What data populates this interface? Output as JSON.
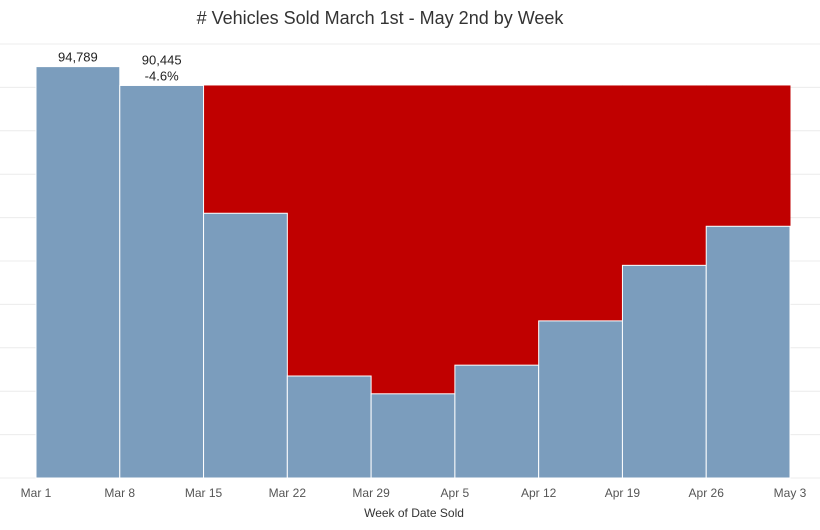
{
  "chart_data": {
    "type": "bar",
    "title": "# Vehicles Sold March 1st - May 2nd by Week",
    "xlabel": "Week of Date Sold",
    "ylabel": "",
    "categories": [
      "Mar 1",
      "Mar 8",
      "Mar 15",
      "Mar 22",
      "Mar 29",
      "Apr 5",
      "Apr 12",
      "Apr 19",
      "Apr 26"
    ],
    "axis_ticks": [
      "Mar 1",
      "Mar 8",
      "Mar 15",
      "Mar 22",
      "Mar 29",
      "Apr 5",
      "Apr 12",
      "Apr 19",
      "Apr 26",
      "May 3"
    ],
    "values": [
      94789,
      90445,
      61000,
      23500,
      19400,
      26000,
      36200,
      49000,
      58000
    ],
    "reference_value": 90445,
    "data_labels": [
      {
        "category": "Mar 1",
        "lines": [
          "94,789"
        ]
      },
      {
        "category": "Mar 8",
        "lines": [
          "90,445",
          "-4.6%"
        ]
      }
    ],
    "ylim": [
      0,
      100000
    ],
    "grid": true,
    "colors": {
      "bar": "#7b9dbd",
      "gap": "#c00000",
      "grid": "#ececec",
      "bar_border": "#ffffff"
    }
  }
}
